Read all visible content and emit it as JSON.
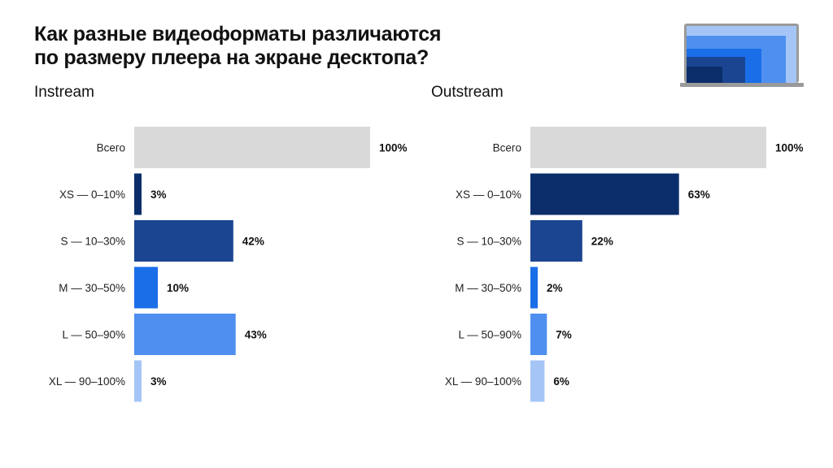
{
  "title": [
    "Как разные видеоформаты различаются",
    "по размеру плеера на экране десктопа?"
  ],
  "icon": "laptop-screen-sizes-icon",
  "colors": {
    "total": "#d9d9d9",
    "XS": "#0b2e6b",
    "S": "#1b4590",
    "M": "#1a6ee8",
    "L": "#4e8ff0",
    "XL": "#a5c5f7"
  },
  "chart_data": [
    {
      "type": "bar",
      "orientation": "horizontal",
      "title": "Instream",
      "categories": [
        "Всего",
        "XS — 0–10%",
        "S — 10–30%",
        "M — 30–50%",
        "L — 50–90%",
        "XL — 90–100%"
      ],
      "values": [
        100,
        3,
        42,
        10,
        43,
        3
      ],
      "labels": [
        "100%",
        "3%",
        "42%",
        "10%",
        "43%",
        "3%"
      ],
      "xlim": [
        0,
        100
      ]
    },
    {
      "type": "bar",
      "orientation": "horizontal",
      "title": "Outstream",
      "categories": [
        "Всего",
        "XS — 0–10%",
        "S — 10–30%",
        "M — 30–50%",
        "L — 50–90%",
        "XL — 90–100%"
      ],
      "values": [
        100,
        63,
        22,
        2,
        7,
        6
      ],
      "labels": [
        "100%",
        "63%",
        "22%",
        "2%",
        "7%",
        "6%"
      ],
      "xlim": [
        0,
        100
      ]
    }
  ]
}
